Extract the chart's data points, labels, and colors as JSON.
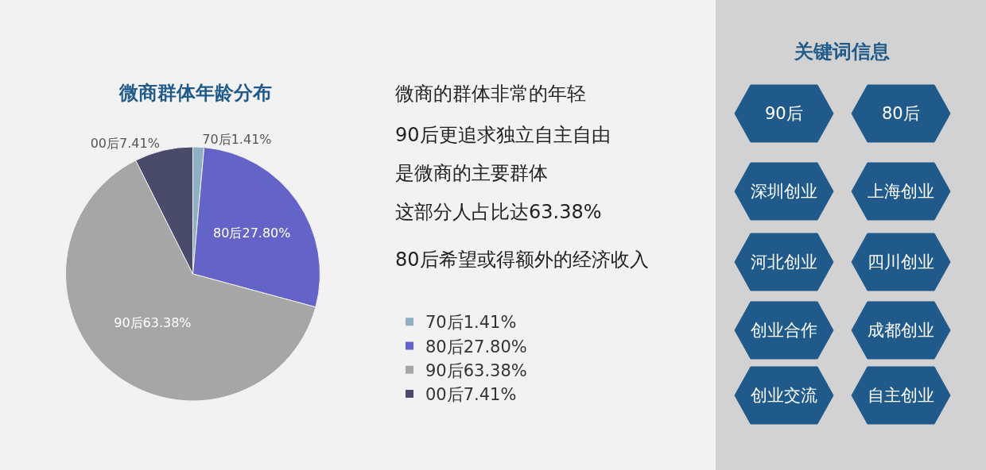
{
  "chart_data": [
    {
      "type": "pie",
      "title": "微商群体年龄分布",
      "categories": [
        "70后1.41%",
        "80后27.80%",
        "90后63.38%",
        "00后7.41%"
      ],
      "values": [
        1.41,
        27.8,
        63.38,
        7.41
      ],
      "colors": [
        "#8fb0c4",
        "#6464c8",
        "#a6a6a6",
        "#4a4a6a"
      ],
      "legend": "right",
      "annotations": [
        "微商的群体非常的年轻",
        "90后更追求独立自主自由",
        "是微商的主要群体",
        "这部分人占比达63.38%",
        "80后希望或得额外的经济收入"
      ]
    },
    {
      "type": "other",
      "title": "关键词信息",
      "annotations": [
        "90后",
        "80后",
        "深圳创业",
        "上海创业",
        "河北创业",
        "四川创业",
        "创业合作",
        "成都创业",
        "创业交流",
        "自主创业"
      ]
    }
  ]
}
